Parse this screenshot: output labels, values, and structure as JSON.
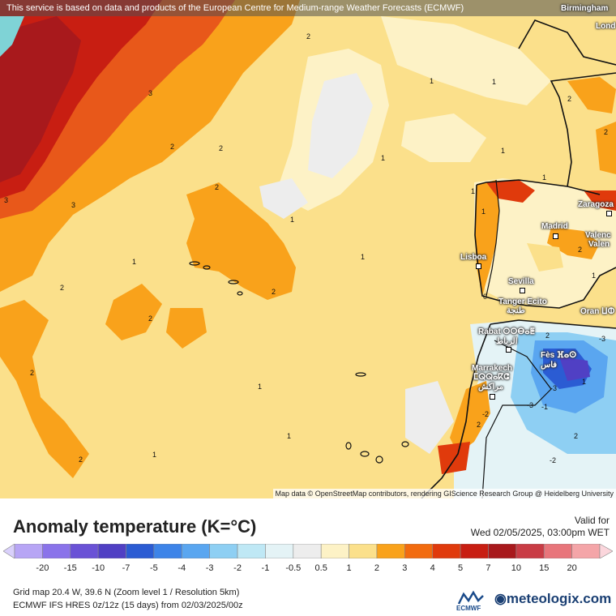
{
  "map": {
    "attribution_top": "This service is based on data and products of the European Centre for Medium-range Weather Forecasts (ECMWF)",
    "attribution_bottom": "Map data © OpenStreetMap contributors, rendering GIScience Research Group @ Heidelberg University",
    "cities": [
      {
        "id": "birmingham",
        "label": "Birmingham"
      },
      {
        "id": "london",
        "label": "Lond"
      },
      {
        "id": "zaragoza",
        "label": "Zaragoza"
      },
      {
        "id": "madrid",
        "label": "Madrid"
      },
      {
        "id": "valencia1",
        "label": "Valenc"
      },
      {
        "id": "valencia2",
        "label": "Valen"
      },
      {
        "id": "lisboa",
        "label": "Lisboa"
      },
      {
        "id": "sevilla",
        "label": "Sevilla"
      },
      {
        "id": "tanger",
        "label": "Tanger Ecito"
      },
      {
        "id": "tanger_ar",
        "label": "طنجة"
      },
      {
        "id": "oran",
        "label": "Oran ⵡⵀ"
      },
      {
        "id": "rabat",
        "label": "Rabat ⵔⵔⴱⴰⵟ"
      },
      {
        "id": "rabat_ar",
        "label": "الرباط"
      },
      {
        "id": "fes",
        "label": "Fès ⴼⴰⵙ"
      },
      {
        "id": "fes_ar",
        "label": "فاس"
      },
      {
        "id": "marrakech",
        "label": "Marrakech"
      },
      {
        "id": "marrakech_tz",
        "label": "ⵎⵕⵕⴰⴽⵛ"
      },
      {
        "id": "marrakech_ar",
        "label": "مراكش"
      }
    ],
    "contour_labels": [
      "2",
      "3",
      "2",
      "2",
      "3",
      "2",
      "1",
      "1",
      "2",
      "1",
      "1",
      "2",
      "3",
      "2",
      "1",
      "1",
      "1",
      "2",
      "2",
      "1",
      "2",
      "2",
      "1",
      "1",
      "2",
      "1",
      "1",
      "1",
      "2",
      "1",
      "1",
      "2",
      "2",
      "-3",
      "-3",
      "-3",
      "-2",
      "-1",
      "0",
      "-2"
    ]
  },
  "footer": {
    "title": "Anomaly temperature (K=°C)",
    "valid_label": "Valid for",
    "valid_date": "Wed 02/05/2025, 03:00pm WET",
    "legend_ticks": [
      "-20",
      "-15",
      "-10",
      "-7",
      "-5",
      "-4",
      "-3",
      "-2",
      "-1",
      "-0.5",
      "0.5",
      "1",
      "2",
      "3",
      "4",
      "5",
      "7",
      "10",
      "15",
      "20"
    ],
    "legend_colors": [
      "#b7a5f5",
      "#8a73ea",
      "#6a52d6",
      "#5040c4",
      "#2b5cd3",
      "#3d84e8",
      "#5aa6f0",
      "#8ecff3",
      "#bfe8f5",
      "#e4f3f6",
      "#ededed",
      "#fdf2c6",
      "#fbe08b",
      "#f9a21b",
      "#f26b0f",
      "#e03a0c",
      "#c81e12",
      "#a8191c",
      "#c93c45",
      "#e8757b",
      "#f4a5a8"
    ],
    "grid_info": "Grid map 20.4 W, 39.6 N (Zoom level 1 / Resolution 5km)",
    "model_info": "ECMWF IFS HRES 0z/12z (15 days)  from  02/03/2025/00z",
    "ecmwf_label": "ECMWF",
    "brand": "meteologix.com"
  }
}
